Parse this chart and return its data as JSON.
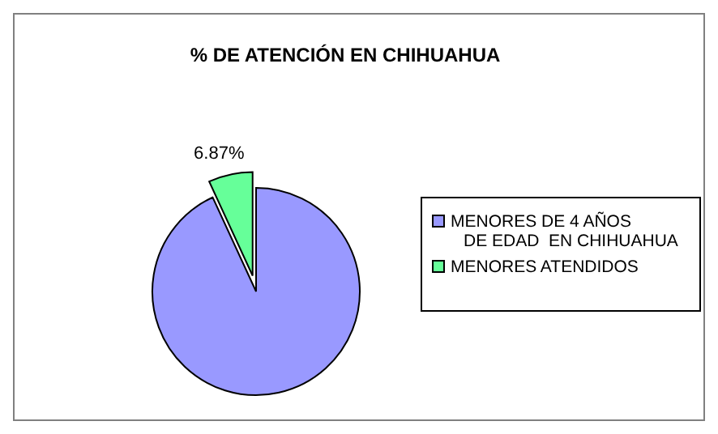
{
  "chart_data": {
    "type": "pie",
    "title": "% DE ATENCIÓN EN CHIHUAHUA",
    "categories": [
      "MENORES DE 4 AÑOS\nDE EDAD  EN CHIHUAHUA",
      "MENORES ATENDIDOS"
    ],
    "values": [
      93.13,
      6.87
    ],
    "colors": [
      "#9999ff",
      "#66ff99"
    ],
    "value_labels": [
      null,
      "6.87%"
    ],
    "legend": "right"
  }
}
